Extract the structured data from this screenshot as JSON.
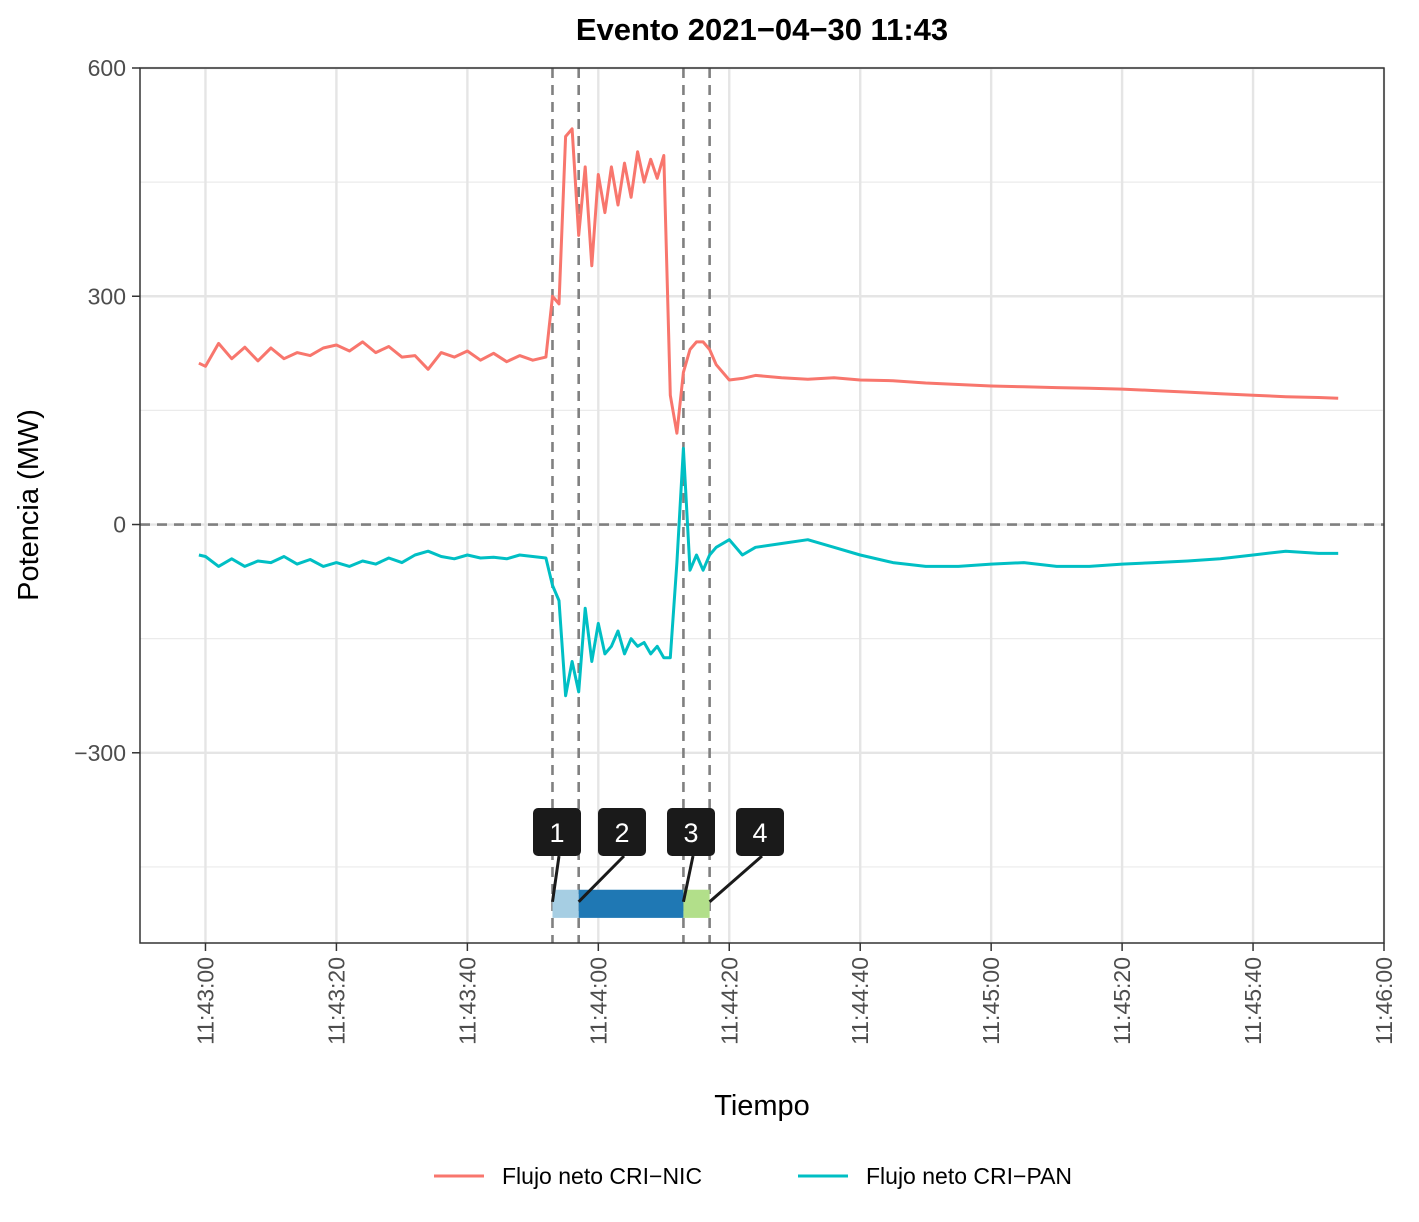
{
  "chart_data": {
    "type": "line",
    "title": "Evento 2021−04−30 11:43",
    "xlabel": "Tiempo",
    "ylabel": "Potencia (MW)",
    "xlim": [
      "11:42:50",
      "11:46:00"
    ],
    "ylim": [
      -550,
      600
    ],
    "x_ticks": [
      "11:43:00",
      "11:43:20",
      "11:43:40",
      "11:44:00",
      "11:44:20",
      "11:44:40",
      "11:45:00",
      "11:45:20",
      "11:45:40",
      "11:46:00"
    ],
    "y_ticks": [
      {
        "value": 600,
        "label": "600"
      },
      {
        "value": 300,
        "label": "300"
      },
      {
        "value": 0,
        "label": "0"
      },
      {
        "value": -300,
        "label": "−300"
      }
    ],
    "grid": true,
    "legend_position": "bottom",
    "reference_lines": {
      "horizontal": [
        0
      ],
      "vertical": [
        "11:43:53",
        "11:43:57",
        "11:44:13",
        "11:44:17"
      ]
    },
    "phases": [
      {
        "label": "1",
        "start": "11:43:53",
        "end": "11:43:57",
        "color": "#a6cee3"
      },
      {
        "label": "2",
        "start": "11:43:57",
        "end": "11:44:13",
        "color": "#1f78b4"
      },
      {
        "label": "3",
        "start": "11:44:13",
        "end": "11:44:13",
        "color": "#1f78b4"
      },
      {
        "label": "4",
        "start": "11:44:13",
        "end": "11:44:17",
        "color": "#b2df8a"
      }
    ],
    "series": [
      {
        "name": "Flujo neto CRI−NIC",
        "color": "#F8766D",
        "x": [
          "11:42:59",
          "11:43:00",
          "11:43:02",
          "11:43:04",
          "11:43:06",
          "11:43:08",
          "11:43:10",
          "11:43:12",
          "11:43:14",
          "11:43:16",
          "11:43:18",
          "11:43:20",
          "11:43:22",
          "11:43:24",
          "11:43:26",
          "11:43:28",
          "11:43:30",
          "11:43:32",
          "11:43:34",
          "11:43:36",
          "11:43:38",
          "11:43:40",
          "11:43:42",
          "11:43:44",
          "11:43:46",
          "11:43:48",
          "11:43:50",
          "11:43:52",
          "11:43:53",
          "11:43:54",
          "11:43:55",
          "11:43:56",
          "11:43:57",
          "11:43:58",
          "11:43:59",
          "11:44:00",
          "11:44:01",
          "11:44:02",
          "11:44:03",
          "11:44:04",
          "11:44:05",
          "11:44:06",
          "11:44:07",
          "11:44:08",
          "11:44:09",
          "11:44:10",
          "11:44:11",
          "11:44:12",
          "11:44:13",
          "11:44:14",
          "11:44:15",
          "11:44:16",
          "11:44:17",
          "11:44:18",
          "11:44:20",
          "11:44:22",
          "11:44:24",
          "11:44:28",
          "11:44:32",
          "11:44:36",
          "11:44:40",
          "11:44:45",
          "11:44:50",
          "11:44:55",
          "11:45:00",
          "11:45:05",
          "11:45:10",
          "11:45:15",
          "11:45:20",
          "11:45:25",
          "11:45:30",
          "11:45:35",
          "11:45:40",
          "11:45:45",
          "11:45:50",
          "11:45:53"
        ],
        "values": [
          212,
          208,
          238,
          218,
          233,
          215,
          232,
          218,
          226,
          222,
          232,
          236,
          228,
          240,
          226,
          234,
          220,
          222,
          204,
          226,
          220,
          228,
          216,
          225,
          214,
          222,
          216,
          220,
          300,
          290,
          510,
          520,
          380,
          470,
          340,
          460,
          410,
          470,
          420,
          475,
          430,
          490,
          450,
          480,
          455,
          485,
          170,
          120,
          200,
          230,
          240,
          240,
          230,
          210,
          190,
          192,
          196,
          193,
          191,
          193,
          190,
          189,
          186,
          184,
          182,
          181,
          180,
          179,
          178,
          176,
          174,
          172,
          170,
          168,
          167,
          166
        ]
      },
      {
        "name": "Flujo neto CRI−PAN",
        "color": "#00BFC4",
        "x": [
          "11:42:59",
          "11:43:00",
          "11:43:02",
          "11:43:04",
          "11:43:06",
          "11:43:08",
          "11:43:10",
          "11:43:12",
          "11:43:14",
          "11:43:16",
          "11:43:18",
          "11:43:20",
          "11:43:22",
          "11:43:24",
          "11:43:26",
          "11:43:28",
          "11:43:30",
          "11:43:32",
          "11:43:34",
          "11:43:36",
          "11:43:38",
          "11:43:40",
          "11:43:42",
          "11:43:44",
          "11:43:46",
          "11:43:48",
          "11:43:50",
          "11:43:52",
          "11:43:53",
          "11:43:54",
          "11:43:55",
          "11:43:56",
          "11:43:57",
          "11:43:58",
          "11:43:59",
          "11:44:00",
          "11:44:01",
          "11:44:02",
          "11:44:03",
          "11:44:04",
          "11:44:05",
          "11:44:06",
          "11:44:07",
          "11:44:08",
          "11:44:09",
          "11:44:10",
          "11:44:11",
          "11:44:12",
          "11:44:13",
          "11:44:14",
          "11:44:15",
          "11:44:16",
          "11:44:17",
          "11:44:18",
          "11:44:20",
          "11:44:22",
          "11:44:24",
          "11:44:28",
          "11:44:32",
          "11:44:36",
          "11:44:40",
          "11:44:45",
          "11:44:50",
          "11:44:55",
          "11:45:00",
          "11:45:05",
          "11:45:10",
          "11:45:15",
          "11:45:20",
          "11:45:25",
          "11:45:30",
          "11:45:35",
          "11:45:40",
          "11:45:45",
          "11:45:50",
          "11:45:53"
        ],
        "values": [
          -40,
          -42,
          -55,
          -45,
          -55,
          -48,
          -50,
          -42,
          -52,
          -46,
          -55,
          -50,
          -55,
          -48,
          -52,
          -44,
          -50,
          -40,
          -35,
          -42,
          -45,
          -40,
          -44,
          -43,
          -45,
          -40,
          -42,
          -44,
          -80,
          -100,
          -225,
          -180,
          -220,
          -110,
          -180,
          -130,
          -170,
          -160,
          -140,
          -170,
          -150,
          -160,
          -155,
          -170,
          -160,
          -175,
          -175,
          -50,
          100,
          -60,
          -40,
          -60,
          -40,
          -30,
          -20,
          -40,
          -30,
          -25,
          -20,
          -30,
          -40,
          -50,
          -55,
          -55,
          -52,
          -50,
          -55,
          -55,
          -52,
          -50,
          -48,
          -45,
          -40,
          -35,
          -38,
          -38
        ]
      }
    ]
  }
}
